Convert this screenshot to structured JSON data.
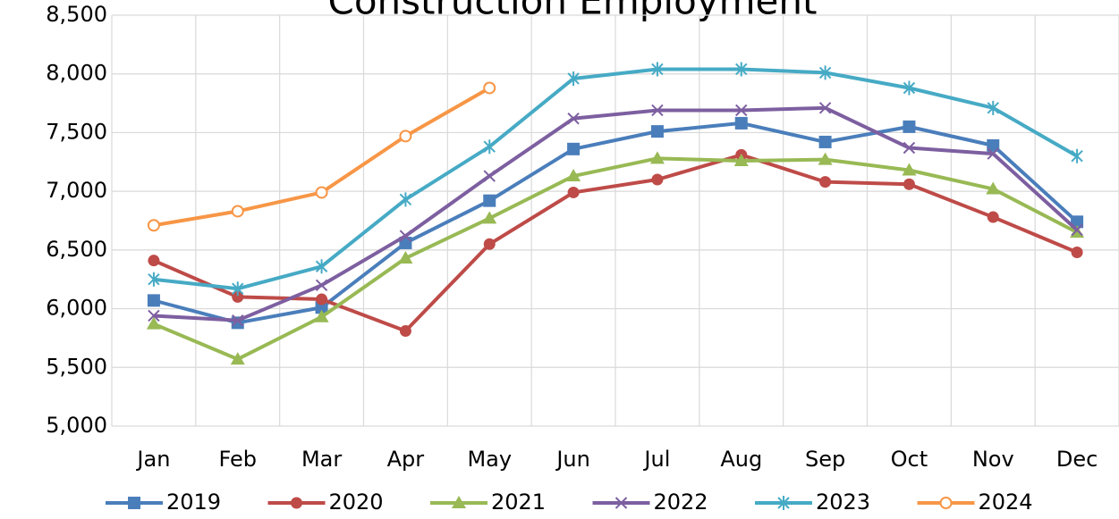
{
  "chart_data": {
    "type": "line",
    "title": "Construction Employment",
    "categories": [
      "Jan",
      "Feb",
      "Mar",
      "Apr",
      "May",
      "Jun",
      "Jul",
      "Aug",
      "Sep",
      "Oct",
      "Nov",
      "Dec"
    ],
    "ylim": [
      5000,
      8500
    ],
    "yticks": [
      {
        "value": 5000,
        "label": "5,000"
      },
      {
        "value": 5500,
        "label": "5,500"
      },
      {
        "value": 6000,
        "label": "6,000"
      },
      {
        "value": 6500,
        "label": "6,500"
      },
      {
        "value": 7000,
        "label": "7,000"
      },
      {
        "value": 7500,
        "label": "7,500"
      },
      {
        "value": 8000,
        "label": "8,000"
      },
      {
        "value": 8500,
        "label": "8,500"
      }
    ],
    "grid": true,
    "legend": "bottom",
    "series": [
      {
        "name": "2019",
        "color": "#4a7ebb",
        "marker": "square",
        "values": [
          6070,
          5880,
          6010,
          6560,
          6920,
          7360,
          7510,
          7580,
          7420,
          7550,
          7390,
          6740
        ]
      },
      {
        "name": "2020",
        "color": "#be4b48",
        "marker": "circle",
        "values": [
          6410,
          6100,
          6080,
          5810,
          6550,
          6990,
          7100,
          7310,
          7080,
          7060,
          6780,
          6480
        ]
      },
      {
        "name": "2021",
        "color": "#98b954",
        "marker": "triangle",
        "values": [
          5870,
          5570,
          5930,
          6430,
          6770,
          7130,
          7280,
          7260,
          7270,
          7180,
          7020,
          6650
        ]
      },
      {
        "name": "2022",
        "color": "#7d5fa0",
        "marker": "x",
        "values": [
          5940,
          5900,
          6200,
          6620,
          7130,
          7620,
          7690,
          7690,
          7710,
          7370,
          7320,
          6670
        ]
      },
      {
        "name": "2023",
        "color": "#46aac5",
        "marker": "star",
        "values": [
          6250,
          6170,
          6360,
          6930,
          7380,
          7960,
          8040,
          8040,
          8010,
          7880,
          7710,
          7300
        ]
      },
      {
        "name": "2024",
        "color": "#f79646",
        "marker": "open-circle",
        "values": [
          6710,
          6830,
          6990,
          7470,
          7880,
          null,
          null,
          null,
          null,
          null,
          null,
          null
        ]
      }
    ]
  }
}
